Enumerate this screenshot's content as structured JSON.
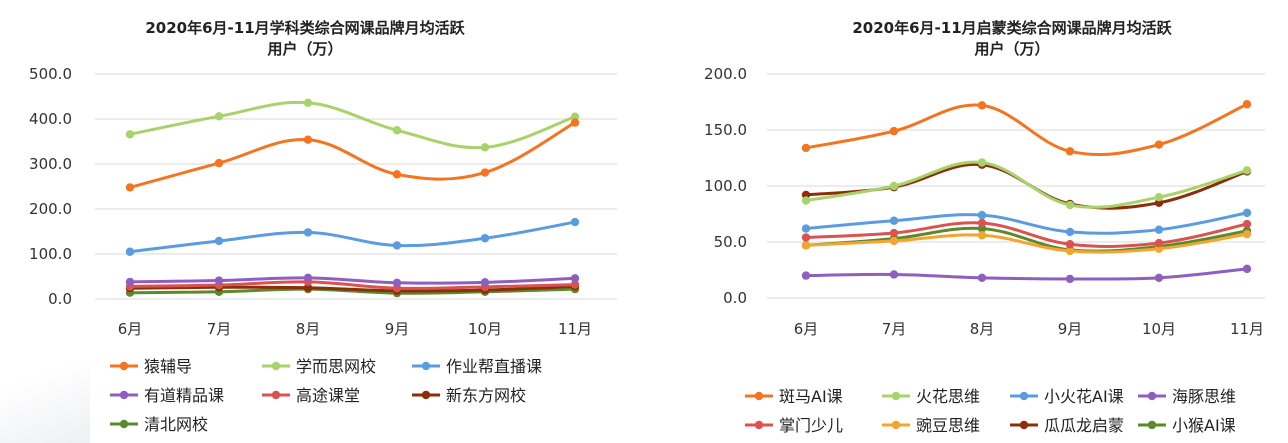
{
  "chart_data": [
    {
      "type": "line",
      "title_lines": [
        "2020年6月-11月学科类综合网课品牌月均活跃",
        "用户（万）"
      ],
      "categories": [
        "6月",
        "7月",
        "8月",
        "9月",
        "10月",
        "11月"
      ],
      "ylim": [
        0,
        500
      ],
      "yticks": [
        "0.0",
        "100.0",
        "200.0",
        "300.0",
        "400.0",
        "500.0"
      ],
      "ytick_values": [
        0,
        100,
        200,
        300,
        400,
        500
      ],
      "grid": true,
      "legend_position": "bottom",
      "series": [
        {
          "name": "猿辅导",
          "color": "#F47420",
          "values": [
            248,
            302,
            354,
            277,
            281,
            392
          ]
        },
        {
          "name": "学而思网校",
          "color": "#A8D26A",
          "values": [
            366,
            406,
            436,
            375,
            337,
            405
          ]
        },
        {
          "name": "作业帮直播课",
          "color": "#5B9BE0",
          "values": [
            105,
            129,
            148,
            119,
            135,
            171
          ]
        },
        {
          "name": "有道精品课",
          "color": "#8E5FBF",
          "values": [
            38,
            41,
            47,
            36,
            37,
            46
          ]
        },
        {
          "name": "高途课堂",
          "color": "#D9534F",
          "values": [
            28,
            31,
            38,
            24,
            27,
            32
          ]
        },
        {
          "name": "新东方网校",
          "color": "#8B2E0A",
          "values": [
            24,
            26,
            25,
            18,
            20,
            28
          ]
        },
        {
          "name": "清北网校",
          "color": "#5A8A2A",
          "values": [
            14,
            16,
            22,
            13,
            16,
            22
          ]
        }
      ]
    },
    {
      "type": "line",
      "title_lines": [
        "2020年6月-11月启蒙类综合网课品牌月均活跃",
        "用户（万）"
      ],
      "categories": [
        "6月",
        "7月",
        "8月",
        "9月",
        "10月",
        "11月"
      ],
      "ylim": [
        0,
        200
      ],
      "yticks": [
        "0.0",
        "50.0",
        "100.0",
        "150.0",
        "200.0"
      ],
      "ytick_values": [
        0,
        50,
        100,
        150,
        200
      ],
      "grid": true,
      "legend_position": "bottom",
      "series": [
        {
          "name": "斑马AI课",
          "color": "#F47420",
          "values": [
            134,
            149,
            172,
            131,
            137,
            173
          ]
        },
        {
          "name": "火花思维",
          "color": "#A8D26A",
          "values": [
            87,
            100,
            121,
            83,
            90,
            114
          ]
        },
        {
          "name": "小火花AI课",
          "color": "#5B9BE0",
          "values": [
            62,
            69,
            74,
            59,
            61,
            76
          ]
        },
        {
          "name": "海豚思维",
          "color": "#8E5FBF",
          "values": [
            20,
            21,
            18,
            17,
            18,
            26
          ]
        },
        {
          "name": "掌门少儿",
          "color": "#D9534F",
          "values": [
            54,
            58,
            67,
            48,
            49,
            66
          ]
        },
        {
          "name": "豌豆思维",
          "color": "#F2A531",
          "values": [
            47,
            51,
            56,
            42,
            44,
            57
          ]
        },
        {
          "name": "瓜瓜龙启蒙",
          "color": "#8B2E0A",
          "values": [
            92,
            99,
            119,
            84,
            85,
            113
          ]
        },
        {
          "name": "小猴AI课",
          "color": "#5A8A2A",
          "values": [
            47,
            53,
            62,
            43,
            46,
            60
          ]
        }
      ]
    }
  ]
}
